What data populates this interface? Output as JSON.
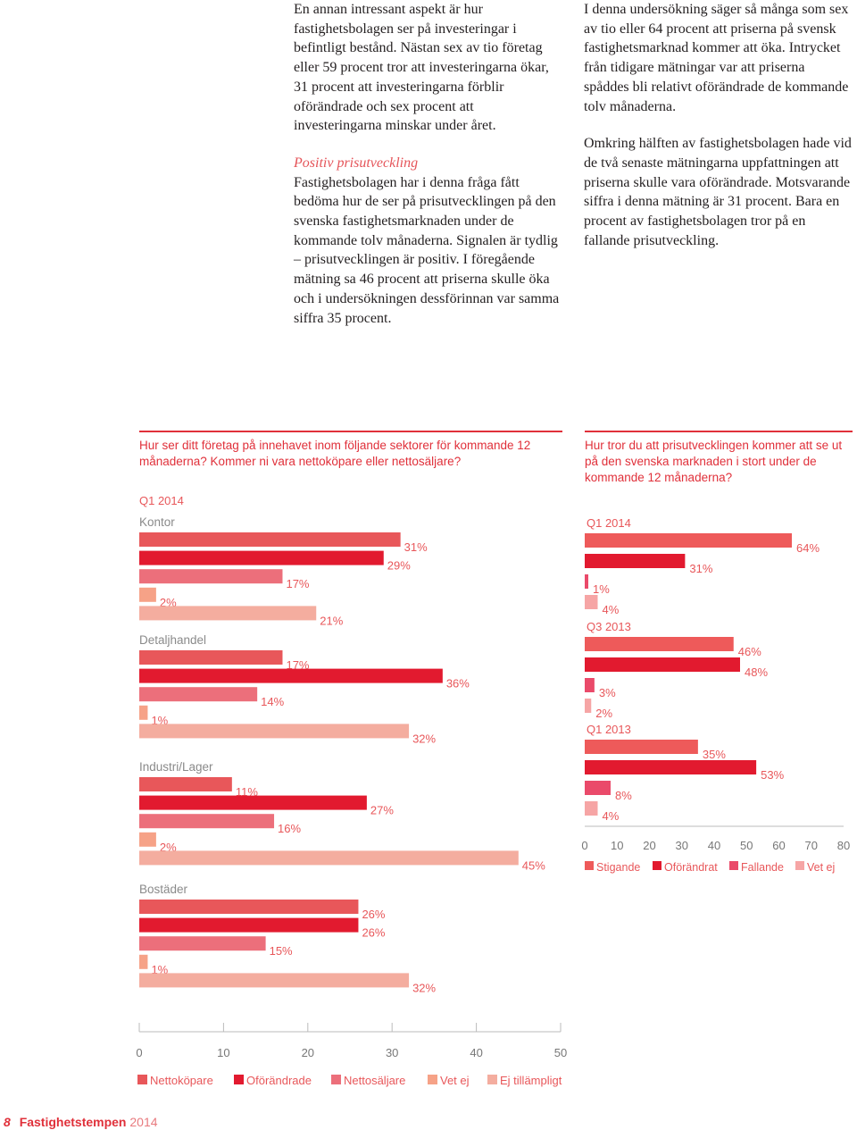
{
  "text": {
    "col1_p1": "En annan intressant aspekt är hur fastighetsbolagen ser på investeringar i befintligt bestånd. Nästan sex av tio företag eller 59 procent tror att investeringarna ökar, 31 procent att investeringarna förblir oförändrade och sex procent att investeringarna minskar under året.",
    "col1_subhead": "Positiv prisutveckling",
    "col1_p2": "Fastighetsbolagen har i denna fråga fått bedöma hur de ser på prisutvecklingen på den svenska fastighetsmarknaden under de kommande tolv månaderna. Signalen är tydlig – prisutvecklingen är positiv. I föregående mätning sa 46 procent att priserna skulle öka och i undersökningen dessförinnan var samma siffra 35 procent.",
    "col2_p1": "I denna undersökning säger så många som sex av tio eller 64 procent att priserna på svensk fastighetsmarknad kommer att öka. Intrycket från tidigare mätningar var att priserna spåddes bli relativt oförändrade de kommande tolv månaderna.",
    "col2_p2": "Omkring hälften av fastighetsbolagen hade vid de två senaste mätningarna uppfattningen att priserna skulle vara oförändrade. Motsvarande siffra i denna mätning är 31 procent. Bara en procent av fastighetsbolagen tror på en fallande prisutveckling."
  },
  "footer": {
    "page": "8",
    "publication": "Fastighetstempen",
    "year": "2014"
  },
  "chart_data": [
    {
      "type": "bar",
      "title": "Hur ser ditt företag på innehavet inom följande sektorer för kommande 12 månaderna? Kommer ni vara nettoköpare eller nettosäljare?",
      "period": "Q1 2014",
      "orientation": "horizontal",
      "xlim": [
        0,
        50
      ],
      "ticks": [
        0,
        10,
        20,
        30,
        40,
        50
      ],
      "value_suffix": "%",
      "series": [
        {
          "name": "Nettoköpare",
          "color": "#e8575a"
        },
        {
          "name": "Oförändrade",
          "color": "#e21a2f"
        },
        {
          "name": "Nettosäljare",
          "color": "#ec6f7b"
        },
        {
          "name": "Vet ej",
          "color": "#f6a287"
        },
        {
          "name": "Ej tillämpligt",
          "color": "#f4ad9f"
        }
      ],
      "groups": [
        {
          "name": "Kontor",
          "values": [
            31,
            29,
            17,
            2,
            21
          ]
        },
        {
          "name": "Detaljhandel",
          "values": [
            17,
            36,
            14,
            1,
            32
          ]
        },
        {
          "name": "Industri/Lager",
          "values": [
            11,
            27,
            16,
            2,
            45
          ]
        },
        {
          "name": "Bostäder",
          "values": [
            26,
            26,
            15,
            1,
            32
          ]
        }
      ]
    },
    {
      "type": "bar",
      "title": "Hur tror du att prisutvecklingen kommer att se ut på den svenska marknaden i stort under de kommande 12 månaderna?",
      "orientation": "horizontal",
      "xlim": [
        0,
        80
      ],
      "ticks": [
        0,
        10,
        20,
        30,
        40,
        50,
        60,
        70,
        80
      ],
      "value_suffix": "%",
      "series": [
        {
          "name": "Stigande",
          "color": "#ee5a5a"
        },
        {
          "name": "Oförändrat",
          "color": "#e21a2f"
        },
        {
          "name": "Fallande",
          "color": "#ea4a6a"
        },
        {
          "name": "Vet ej",
          "color": "#f6a5a5"
        }
      ],
      "groups": [
        {
          "name": "Q1 2014",
          "values": [
            64,
            31,
            1,
            4
          ]
        },
        {
          "name": "Q3 2013",
          "values": [
            46,
            48,
            3,
            2
          ]
        },
        {
          "name": "Q1 2013",
          "values": [
            35,
            53,
            8,
            4
          ]
        }
      ]
    }
  ]
}
